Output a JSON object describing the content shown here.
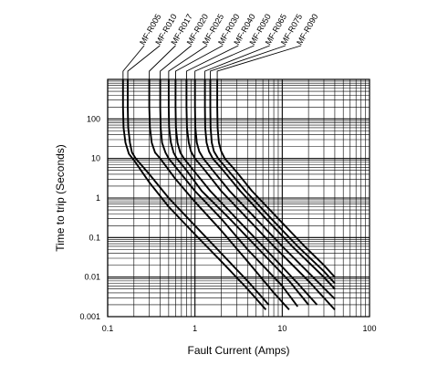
{
  "chart_data": {
    "type": "line",
    "xlabel": "Fault Current (Amps)",
    "ylabel": "Time to trip (Seconds)",
    "x_scale": "log",
    "y_scale": "log",
    "xlim": [
      0.1,
      100
    ],
    "ylim": [
      0.001,
      1000
    ],
    "grid": true,
    "x_ticks": [
      {
        "value": 0.1,
        "label": "0.1"
      },
      {
        "value": 1,
        "label": "1"
      },
      {
        "value": 10,
        "label": "10"
      },
      {
        "value": 100,
        "label": "100"
      }
    ],
    "y_ticks": [
      {
        "value": 0.001,
        "label": "0.001"
      },
      {
        "value": 0.01,
        "label": "0.01"
      },
      {
        "value": 0.1,
        "label": "0.1"
      },
      {
        "value": 1,
        "label": "1"
      },
      {
        "value": 10,
        "label": "10"
      },
      {
        "value": 100,
        "label": "100"
      }
    ],
    "series": [
      {
        "name": "MF-R005",
        "x": [
          0.15,
          0.15,
          0.152,
          0.16,
          0.175,
          0.2,
          0.3,
          0.5,
          1,
          2,
          4,
          6.5
        ],
        "y": [
          1000,
          200,
          60,
          25,
          13,
          9,
          2.5,
          0.6,
          0.12,
          0.025,
          0.005,
          0.0015
        ]
      },
      {
        "name": "MF-R010",
        "x": [
          0.17,
          0.17,
          0.172,
          0.18,
          0.19,
          0.21,
          0.3,
          0.5,
          1,
          2,
          4,
          7
        ],
        "y": [
          1000,
          200,
          60,
          25,
          14,
          10,
          4,
          1,
          0.2,
          0.04,
          0.008,
          0.002
        ]
      },
      {
        "name": "MF-R017",
        "x": [
          0.3,
          0.3,
          0.305,
          0.32,
          0.35,
          0.4,
          0.6,
          1,
          2,
          4,
          8,
          12
        ],
        "y": [
          1000,
          200,
          60,
          25,
          14,
          10,
          3,
          0.8,
          0.15,
          0.025,
          0.004,
          0.0015
        ]
      },
      {
        "name": "MF-R020",
        "x": [
          0.4,
          0.4,
          0.405,
          0.42,
          0.46,
          0.5,
          0.7,
          1,
          2,
          4,
          10,
          15
        ],
        "y": [
          1000,
          200,
          60,
          25,
          14,
          10,
          4,
          1.5,
          0.3,
          0.05,
          0.006,
          0.0018
        ]
      },
      {
        "name": "MF-R025",
        "x": [
          0.5,
          0.5,
          0.505,
          0.53,
          0.57,
          0.62,
          0.8,
          1.2,
          2.5,
          5,
          12,
          20
        ],
        "y": [
          1000,
          200,
          60,
          25,
          14,
          10,
          5,
          1.5,
          0.3,
          0.06,
          0.008,
          0.002
        ]
      },
      {
        "name": "MF-R030",
        "x": [
          0.6,
          0.6,
          0.605,
          0.63,
          0.68,
          0.75,
          1,
          1.5,
          3,
          6,
          15,
          25
        ],
        "y": [
          1000,
          200,
          60,
          25,
          14,
          10,
          4.5,
          1.5,
          0.3,
          0.06,
          0.007,
          0.002
        ]
      },
      {
        "name": "MF-R040",
        "x": [
          0.8,
          0.8,
          0.81,
          0.85,
          0.9,
          1,
          1.3,
          2,
          4,
          8,
          20,
          40
        ],
        "y": [
          1000,
          200,
          60,
          25,
          15,
          10,
          5,
          1.5,
          0.3,
          0.06,
          0.008,
          0.0015
        ]
      },
      {
        "name": "MF-R050",
        "x": [
          1.0,
          1.0,
          1.01,
          1.05,
          1.12,
          1.25,
          1.6,
          2.5,
          5,
          10,
          25,
          40
        ],
        "y": [
          1000,
          200,
          60,
          25,
          15,
          10,
          5,
          1.5,
          0.3,
          0.06,
          0.008,
          0.0028
        ]
      },
      {
        "name": "MF-R065",
        "x": [
          1.3,
          1.3,
          1.31,
          1.36,
          1.45,
          1.6,
          2.1,
          3.3,
          6.5,
          13,
          30,
          40
        ],
        "y": [
          1000,
          200,
          60,
          25,
          15,
          10,
          5,
          1.5,
          0.3,
          0.06,
          0.01,
          0.005
        ]
      },
      {
        "name": "MF-R075",
        "x": [
          1.5,
          1.5,
          1.51,
          1.56,
          1.65,
          1.85,
          2.4,
          3.8,
          7.5,
          15,
          30,
          40
        ],
        "y": [
          1000,
          200,
          60,
          25,
          15,
          10,
          5,
          1.5,
          0.3,
          0.06,
          0.014,
          0.007
        ]
      },
      {
        "name": "MF-R090",
        "x": [
          1.8,
          1.8,
          1.82,
          1.88,
          2,
          2.2,
          2.9,
          4.5,
          9,
          18,
          30,
          40
        ],
        "y": [
          1000,
          200,
          60,
          25,
          15,
          10,
          5,
          1.5,
          0.3,
          0.06,
          0.02,
          0.01
        ]
      }
    ]
  }
}
